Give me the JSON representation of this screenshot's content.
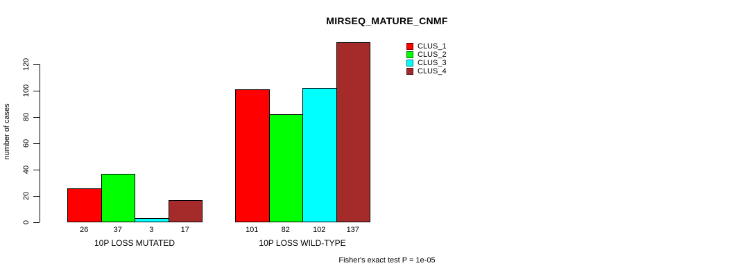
{
  "chart_data": {
    "type": "bar",
    "title": "MIRSEQ_MATURE_CNMF",
    "ylabel": "number of cases",
    "xlabel": "",
    "yticks": [
      0,
      20,
      40,
      60,
      80,
      100,
      120
    ],
    "axis_range": [
      0,
      120
    ],
    "grid": false,
    "legend_position": "top-right-inside",
    "groups": [
      {
        "label": "10P LOSS MUTATED",
        "values": [
          26,
          37,
          3,
          17
        ]
      },
      {
        "label": "10P LOSS WILD-TYPE",
        "values": [
          101,
          82,
          102,
          137
        ]
      }
    ],
    "series": [
      {
        "name": "CLUS_1",
        "color": "#FF0000",
        "values": [
          26,
          101
        ]
      },
      {
        "name": "CLUS_2",
        "color": "#00FF00",
        "values": [
          37,
          82
        ]
      },
      {
        "name": "CLUS_3",
        "color": "#00FFFF",
        "values": [
          3,
          102
        ]
      },
      {
        "name": "CLUS_4",
        "color": "#A52A2A",
        "values": [
          17,
          137
        ]
      }
    ],
    "legend": [
      {
        "label": "CLUS_1",
        "color": "#FF0000"
      },
      {
        "label": "CLUS_2",
        "color": "#00FF00"
      },
      {
        "label": "CLUS_3",
        "color": "#00FFFF"
      },
      {
        "label": "CLUS_4",
        "color": "#A52A2A"
      }
    ],
    "annotation": "Fisher's exact test P = 1e-05",
    "colors": {
      "axis": "#000000",
      "text": "#000000",
      "background": "#FFFFFF"
    }
  }
}
